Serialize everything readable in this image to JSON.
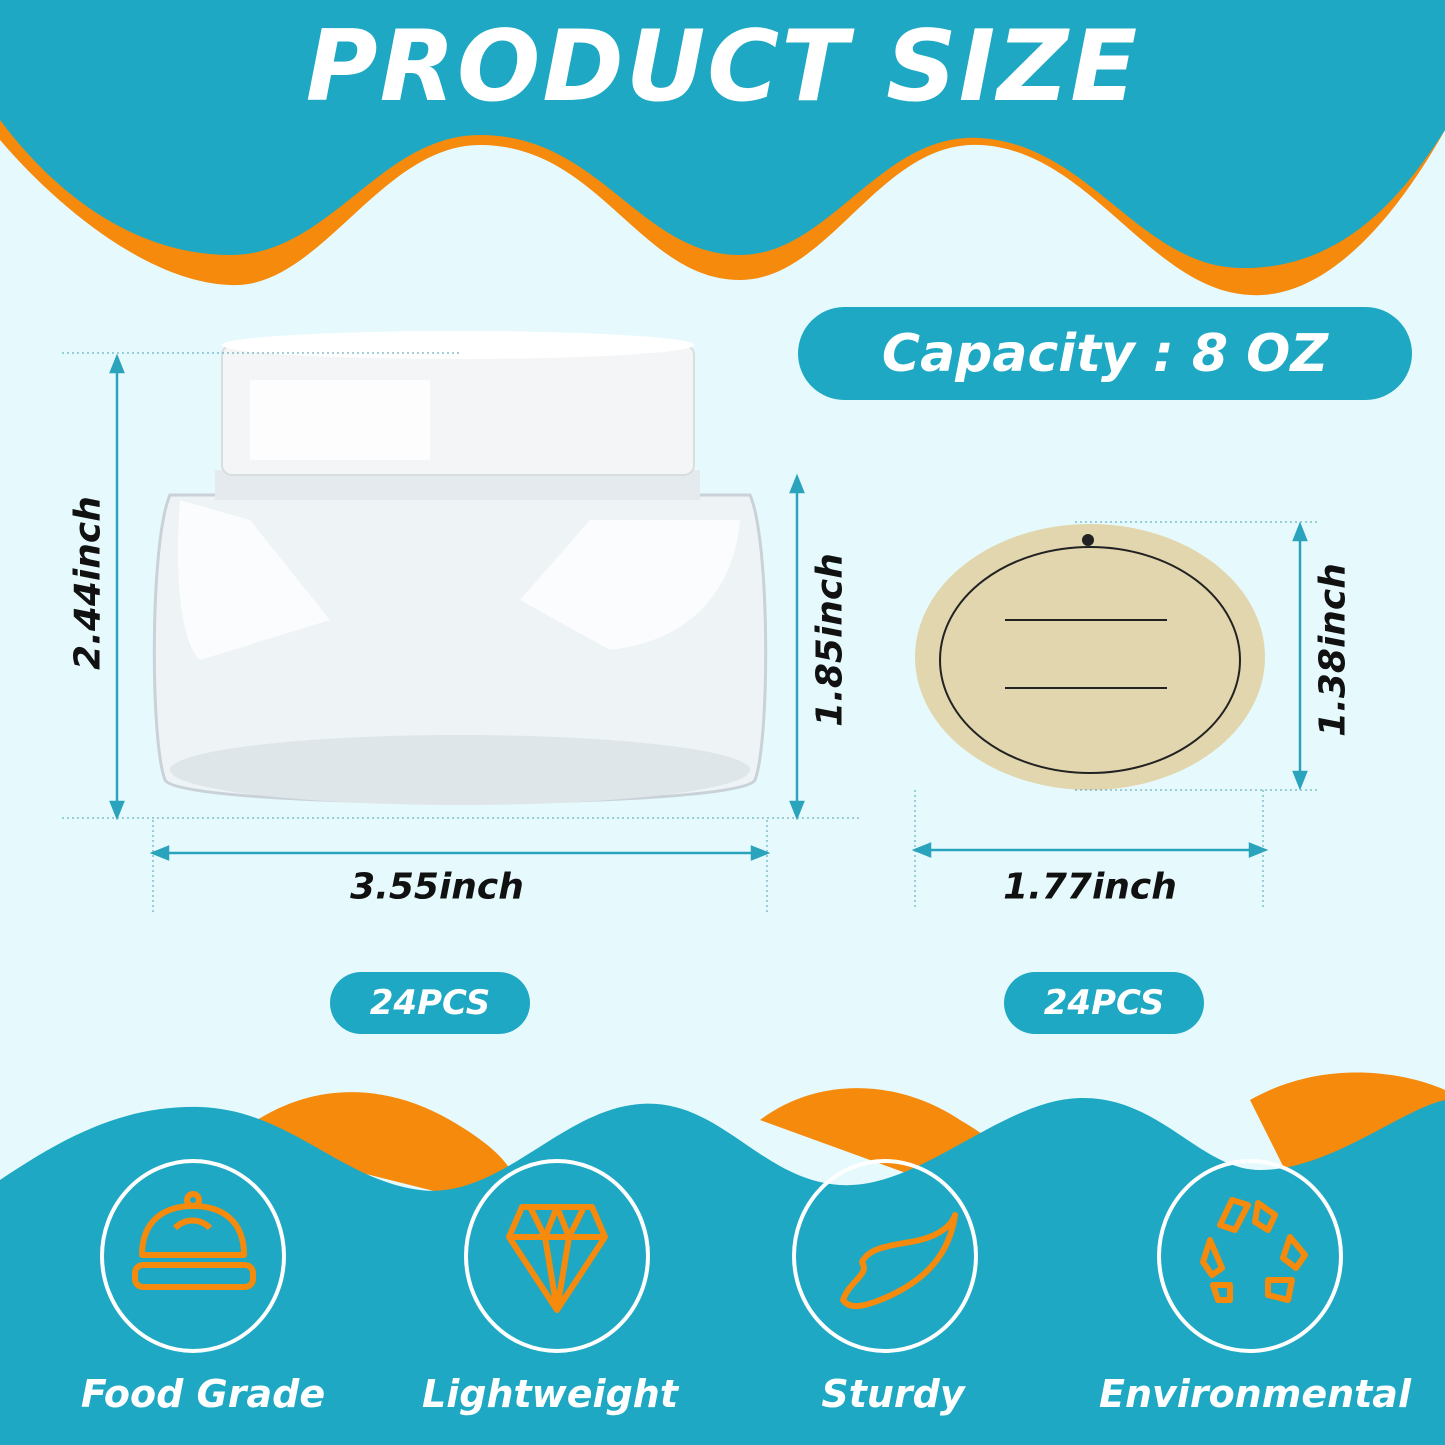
{
  "header": {
    "title": "PRODUCT SIZE"
  },
  "capacity": {
    "label": "Capacity : 8 OZ"
  },
  "jar": {
    "height_total": "2.44inch",
    "height_body": "1.85inch",
    "width": "3.55inch",
    "quantity": "24PCS"
  },
  "label_sticker": {
    "height": "1.38inch",
    "width": "1.77inch",
    "quantity": "24PCS"
  },
  "features": [
    {
      "label": "Food Grade",
      "icon": "food-cloche-icon"
    },
    {
      "label": "Lightweight",
      "icon": "diamond-icon"
    },
    {
      "label": "Sturdy",
      "icon": "leaf-icon"
    },
    {
      "label": "Environmental",
      "icon": "recycle-icon"
    }
  ],
  "colors": {
    "teal": "#1ea8c3",
    "orange": "#f58a0c",
    "background": "#e6fafd"
  }
}
